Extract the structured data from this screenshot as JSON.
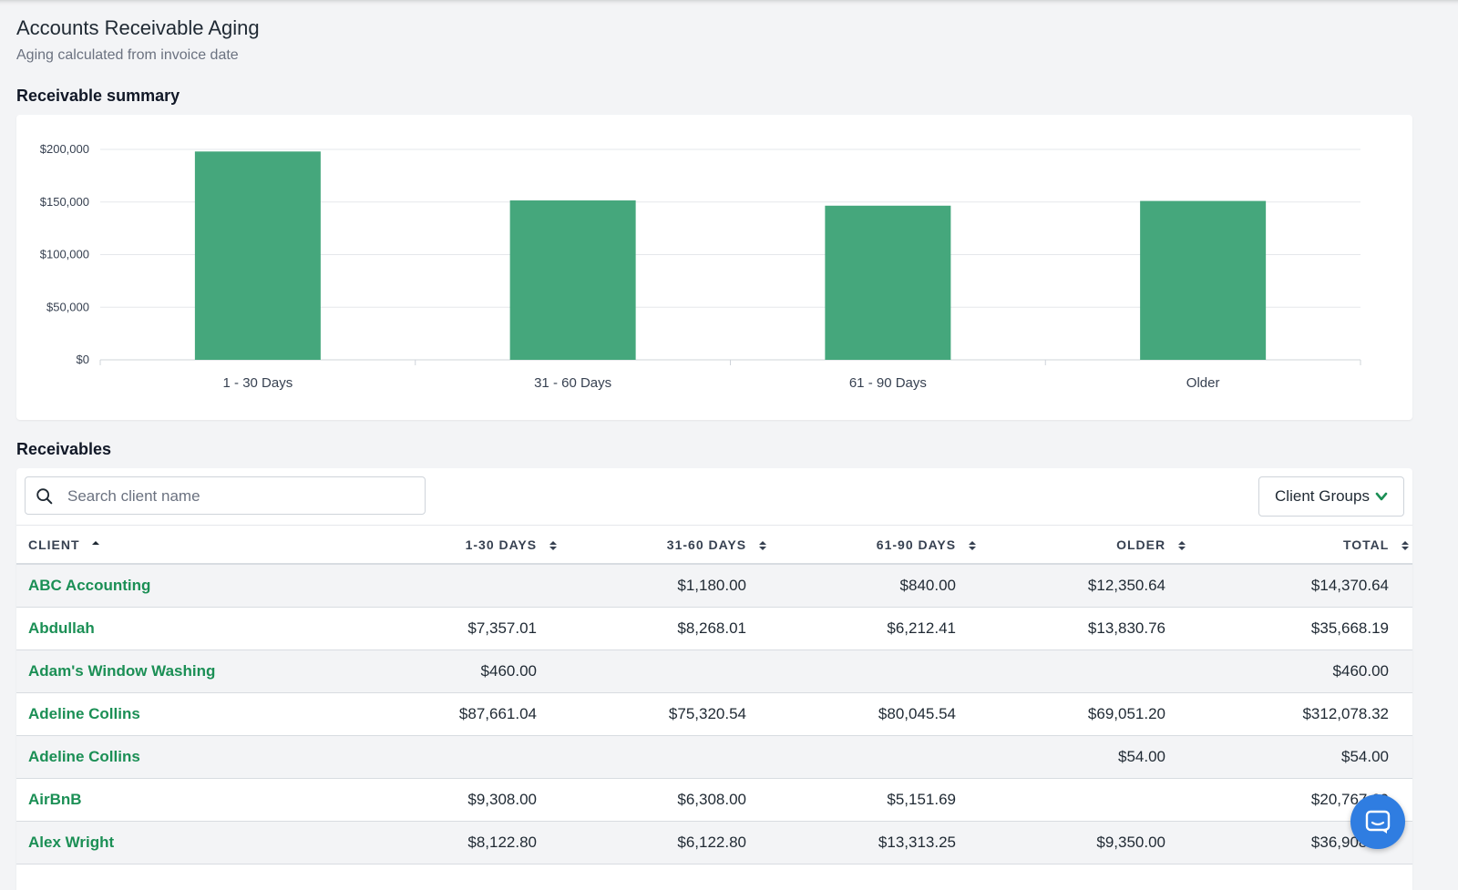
{
  "header": {
    "title": "Accounts Receivable Aging",
    "subtitle": "Aging calculated from invoice date"
  },
  "summary": {
    "title": "Receivable summary"
  },
  "chart_data": {
    "type": "bar",
    "title": "",
    "xlabel": "",
    "ylabel": "",
    "categories": [
      "1 - 30 Days",
      "31 - 60 Days",
      "61 - 90 Days",
      "Older"
    ],
    "values": [
      198000,
      151500,
      146500,
      151000
    ],
    "ylim": [
      0,
      200000
    ],
    "yticks": [
      0,
      50000,
      100000,
      150000,
      200000
    ],
    "ytick_labels": [
      "$0",
      "$50,000",
      "$100,000",
      "$150,000",
      "$200,000"
    ],
    "grid": true,
    "bar_color": "#45a77c"
  },
  "receivables": {
    "title": "Receivables",
    "search_placeholder": "Search client name",
    "search_value": "",
    "groups_button": "Client Groups",
    "columns": [
      "CLIENT",
      "1-30 DAYS",
      "31-60 DAYS",
      "61-90 DAYS",
      "OLDER",
      "TOTAL"
    ],
    "rows": [
      {
        "client": "ABC Accounting",
        "d30": "",
        "d60": "$1,180.00",
        "d90": "$840.00",
        "older": "$12,350.64",
        "total": "$14,370.64"
      },
      {
        "client": "Abdullah",
        "d30": "$7,357.01",
        "d60": "$8,268.01",
        "d90": "$6,212.41",
        "older": "$13,830.76",
        "total": "$35,668.19"
      },
      {
        "client": "Adam's Window Washing",
        "d30": "$460.00",
        "d60": "",
        "d90": "",
        "older": "",
        "total": "$460.00"
      },
      {
        "client": "Adeline Collins",
        "d30": "$87,661.04",
        "d60": "$75,320.54",
        "d90": "$80,045.54",
        "older": "$69,051.20",
        "total": "$312,078.32"
      },
      {
        "client": "Adeline Collins",
        "d30": "",
        "d60": "",
        "d90": "",
        "older": "$54.00",
        "total": "$54.00"
      },
      {
        "client": "AirBnB",
        "d30": "$9,308.00",
        "d60": "$6,308.00",
        "d90": "$5,151.69",
        "older": "",
        "total": "$20,767.69"
      },
      {
        "client": "Alex Wright",
        "d30": "$8,122.80",
        "d60": "$6,122.80",
        "d90": "$13,313.25",
        "older": "$9,350.00",
        "total": "$36,908.85"
      }
    ]
  },
  "colors": {
    "accent": "#1b8f55",
    "bar": "#45a77c",
    "chat": "#2f7de1"
  },
  "icons": {
    "search": "search-icon",
    "chevron": "chevron-down-icon",
    "sort": "sort-icon",
    "chat": "chat-icon"
  }
}
